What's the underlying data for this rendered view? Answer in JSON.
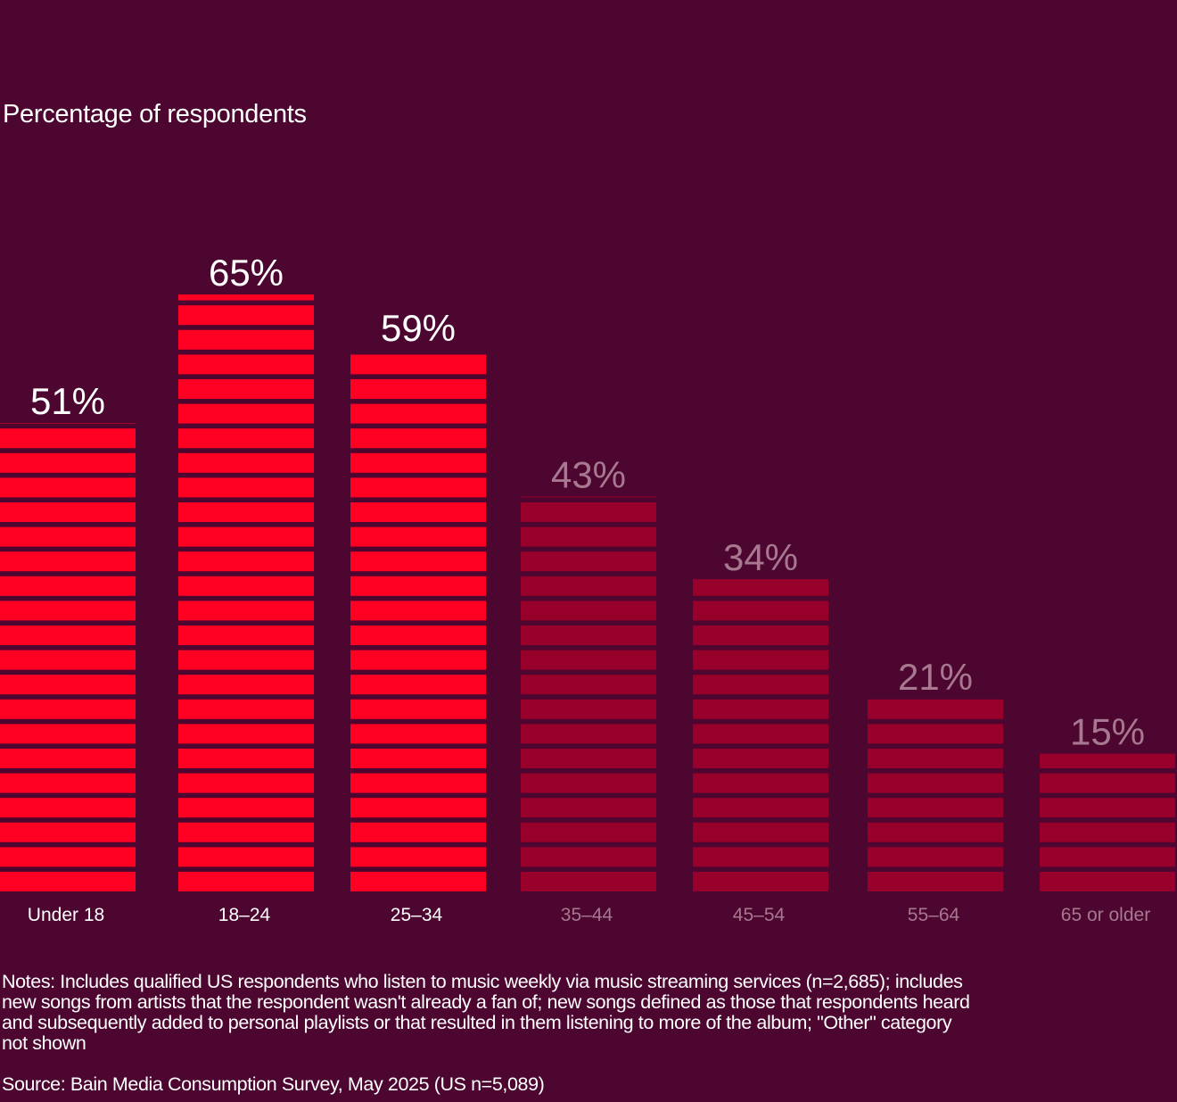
{
  "chart_data": {
    "type": "bar",
    "ylabel": "Percentage of respondents",
    "categories": [
      "Under 18",
      "18–24",
      "25–34",
      "35–44",
      "45–54",
      "55–64",
      "65 or older"
    ],
    "values": [
      51,
      65,
      59,
      43,
      34,
      21,
      15
    ],
    "value_labels": [
      "51%",
      "65%",
      "59%",
      "43%",
      "34%",
      "21%",
      "15%"
    ],
    "highlighted": [
      true,
      true,
      true,
      false,
      false,
      false,
      false
    ],
    "ylim": [
      0,
      65
    ],
    "grid": false,
    "style": "striped bars",
    "colors": {
      "background": "#4c0630",
      "highlight_bar": "#ff0022",
      "muted_bar": "#96002a",
      "highlight_label": "#ffffff",
      "muted_label": "#a7788f"
    }
  },
  "notes_lines": [
    "Notes: Includes qualified US respondents who listen to music weekly via music streaming services (n=2,685); includes",
    "new songs from artists that the respondent wasn't already a fan of; new songs defined as those that respondents heard",
    "and subsequently added to personal playlists or that resulted in them listening to more of the album; \"Other\" category",
    "not shown"
  ],
  "source": "Source: Bain Media Consumption Survey, May 2025 (US n=5,089)"
}
